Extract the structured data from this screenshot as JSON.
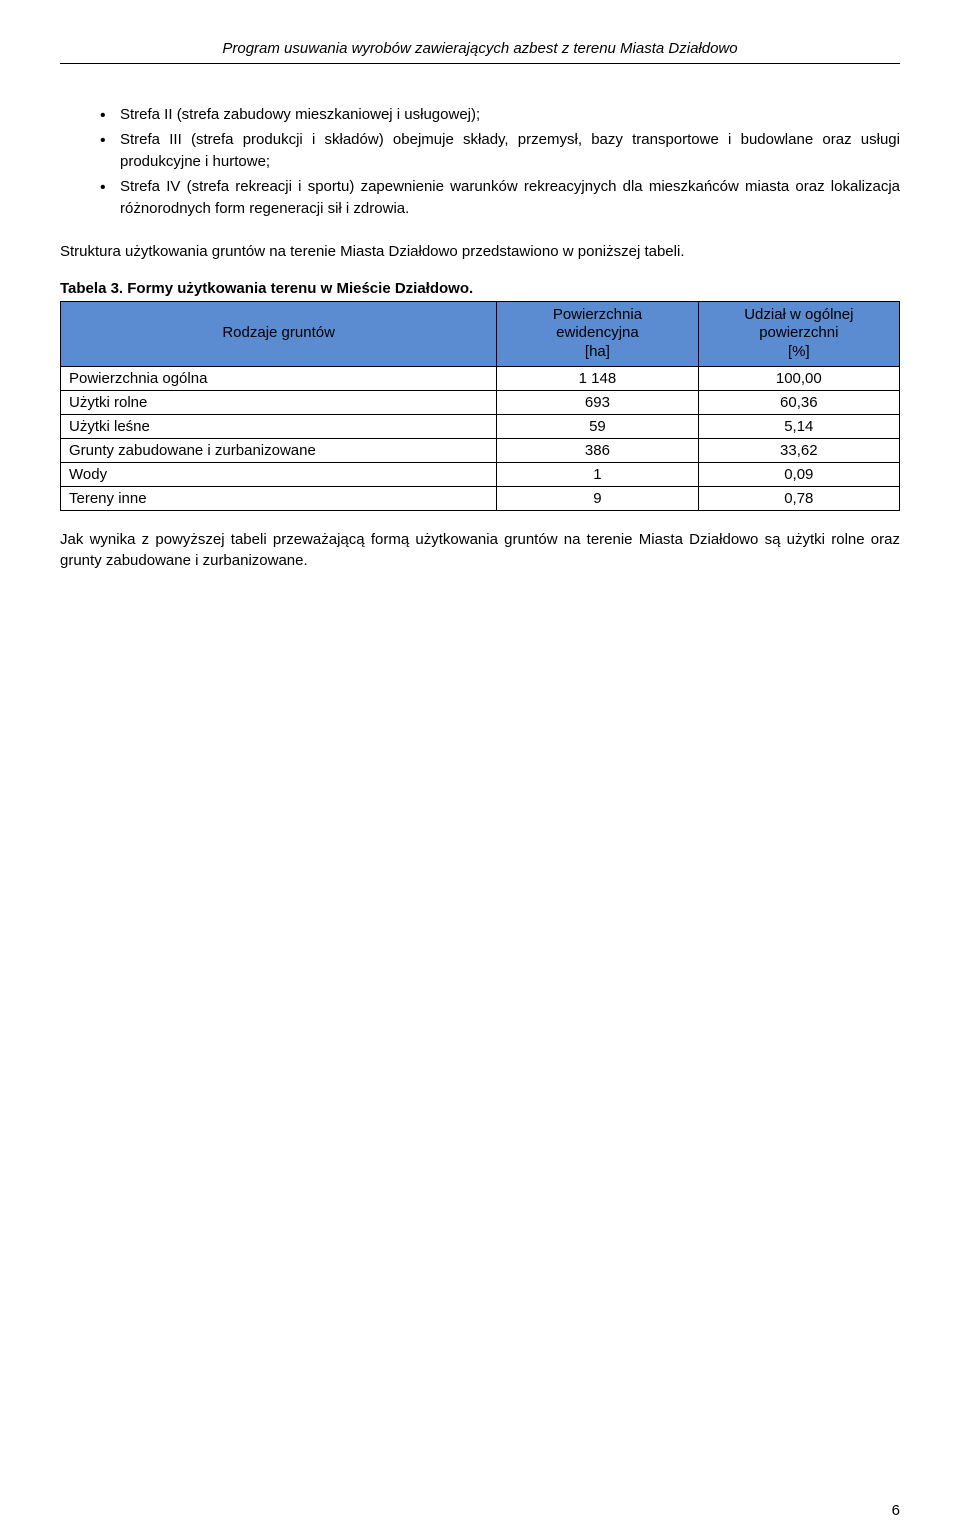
{
  "header": {
    "title": "Program usuwania wyrobów zawierających azbest z terenu Miasta Działdowo"
  },
  "bullets": [
    "Strefa II (strefa zabudowy mieszkaniowej i usługowej);",
    "Strefa III (strefa produkcji i składów) obejmuje składy, przemysł, bazy transportowe i budowlane oraz usługi produkcyjne i hurtowe;",
    "Strefa IV (strefa rekreacji i sportu) zapewnienie warunków rekreacyjnych dla mieszkańców miasta oraz lokalizacja różnorodnych form regeneracji sił i zdrowia."
  ],
  "para1": "Struktura użytkowania gruntów na terenie Miasta Działdowo przedstawiono w poniższej tabeli.",
  "table": {
    "caption": "Tabela 3. Formy użytkowania terenu w Mieście Działdowo.",
    "columns": [
      "Rodzaje gruntów",
      "Powierzchnia\newidencyjna\n[ha]",
      "Udział w ogólnej\npowierzchni\n[%]"
    ],
    "col_header_lines": {
      "c0": "Rodzaje gruntów",
      "c1a": "Powierzchnia",
      "c1b": "ewidencyjna",
      "c1c": "[ha]",
      "c2a": "Udział w ogólnej",
      "c2b": "powierzchni",
      "c2c": "[%]"
    },
    "rows": [
      {
        "label": "Powierzchnia ogólna",
        "area": "1 148",
        "share": "100,00"
      },
      {
        "label": "Użytki rolne",
        "area": "693",
        "share": "60,36"
      },
      {
        "label": "Użytki leśne",
        "area": "59",
        "share": "5,14"
      },
      {
        "label": "Grunty zabudowane i zurbanizowane",
        "area": "386",
        "share": "33,62"
      },
      {
        "label": "Wody",
        "area": "1",
        "share": "0,09"
      },
      {
        "label": "Tereny inne",
        "area": "9",
        "share": "0,78"
      }
    ],
    "header_bg": "#5b8bd0",
    "border_color": "#000000",
    "col_widths": [
      "52%",
      "24%",
      "24%"
    ]
  },
  "para2": "Jak wynika z powyższej tabeli przeważającą formą użytkowania gruntów na terenie Miasta Działdowo są użytki rolne oraz grunty zabudowane i zurbanizowane.",
  "page_number": "6"
}
